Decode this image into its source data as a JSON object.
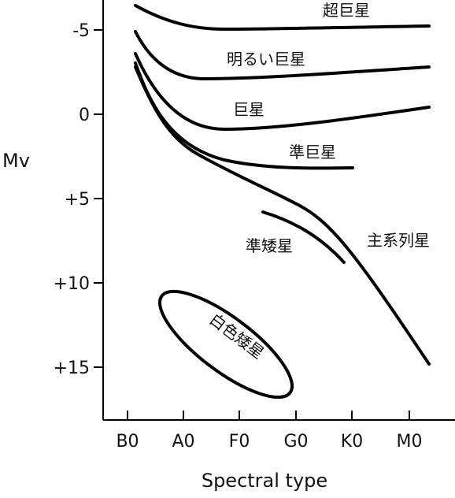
{
  "diagram": {
    "y_axis": {
      "label": "Mv",
      "ticks": [
        "-5",
        "0",
        "+5",
        "+10",
        "+15"
      ]
    },
    "x_axis": {
      "label": "Spectral type",
      "ticks": [
        "B0",
        "A0",
        "F0",
        "G0",
        "K0",
        "M0"
      ]
    },
    "regions": {
      "supergiants": "超巨星",
      "bright_giants": "明るい巨星",
      "giants": "巨星",
      "subgiants": "準巨星",
      "main_sequence": "主系列星",
      "subdwarfs": "準矮星",
      "white_dwarfs": "白色矮星"
    }
  }
}
